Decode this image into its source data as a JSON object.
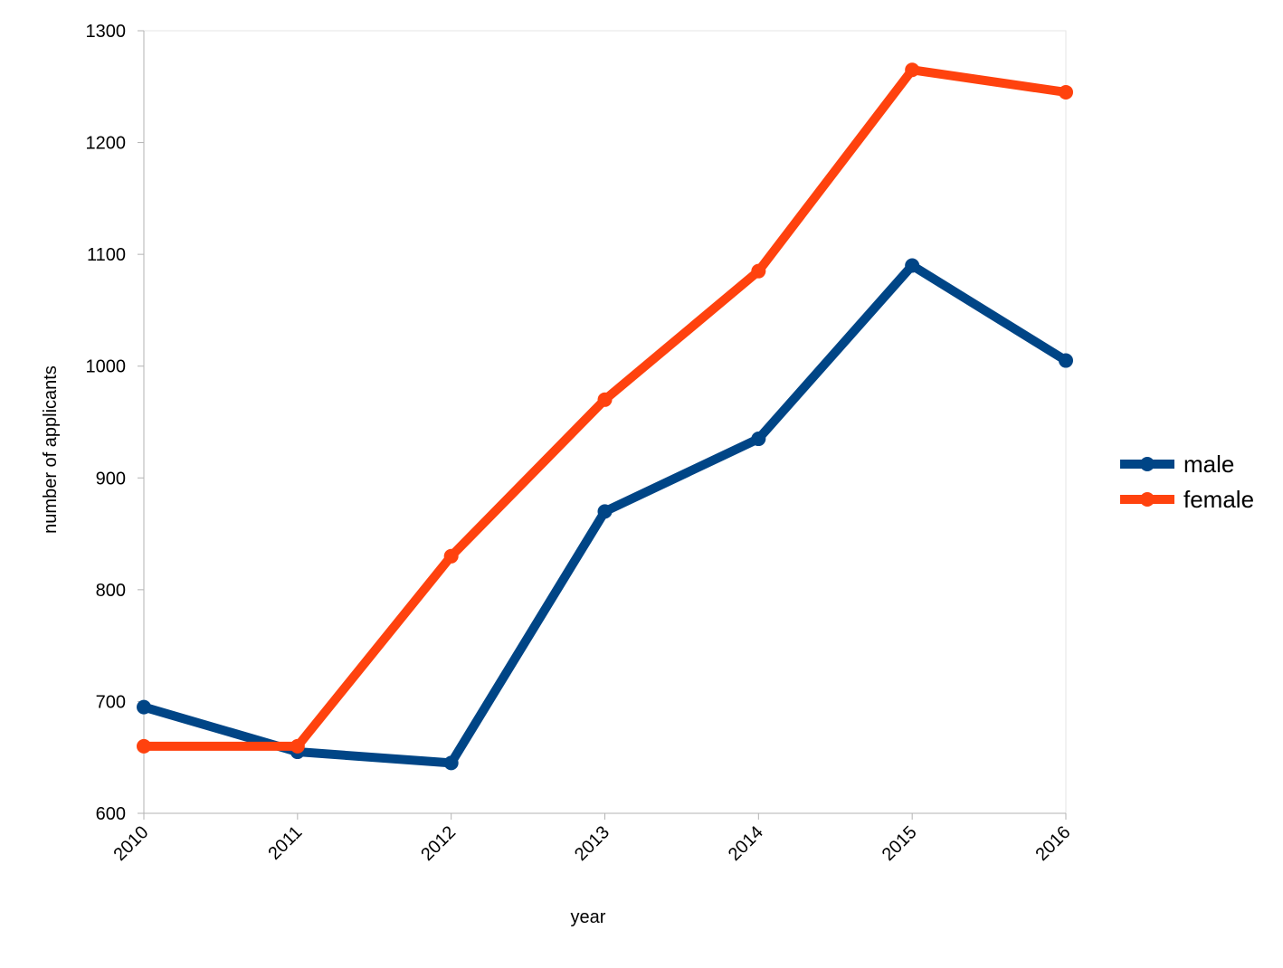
{
  "chart_data": {
    "type": "line",
    "title": "",
    "xlabel": "year",
    "ylabel": "number of applicants",
    "categories": [
      "2010",
      "2011",
      "2012",
      "2013",
      "2014",
      "2015",
      "2016"
    ],
    "ylim": [
      600,
      1300
    ],
    "yticks": [
      600,
      700,
      800,
      900,
      1000,
      1100,
      1200,
      1300
    ],
    "grid": false,
    "legend_position": "right",
    "series": [
      {
        "name": "male",
        "color": "#004586",
        "values": [
          695,
          655,
          645,
          870,
          935,
          1090,
          1005
        ]
      },
      {
        "name": "female",
        "color": "#ff420e",
        "values": [
          660,
          660,
          830,
          970,
          1085,
          1265,
          1245
        ]
      }
    ]
  }
}
